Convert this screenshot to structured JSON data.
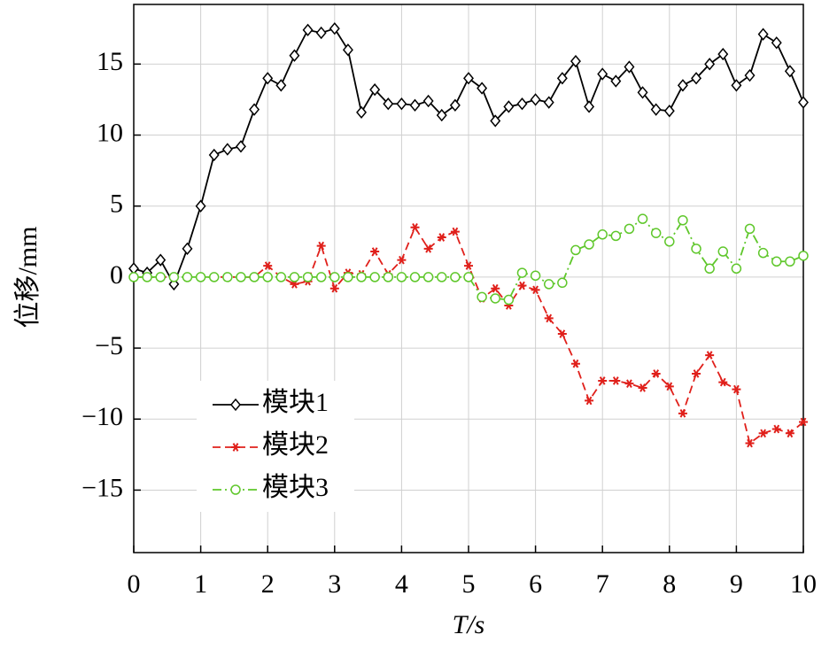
{
  "chart_data": {
    "type": "line",
    "x_label": "T/s",
    "y_label": "位移/mm",
    "xlim": [
      0,
      10
    ],
    "ylim": [
      -19.4,
      19.2
    ],
    "xticks": [
      0,
      1,
      2,
      3,
      4,
      5,
      6,
      7,
      8,
      9,
      10
    ],
    "yticks": [
      {
        "value": -15,
        "label": "−15"
      },
      {
        "value": -10,
        "label": "−10"
      },
      {
        "value": -5,
        "label": "−5"
      },
      0,
      5,
      10,
      15
    ],
    "grid": true,
    "legend": "lower left",
    "x": [
      0,
      0.2,
      0.4,
      0.6,
      0.8,
      1.0,
      1.2,
      1.4,
      1.6,
      1.8,
      2.0,
      2.2,
      2.4,
      2.6,
      2.8,
      3.0,
      3.2,
      3.4,
      3.6,
      3.8,
      4.0,
      4.2,
      4.4,
      4.6,
      4.8,
      5.0,
      5.2,
      5.4,
      5.6,
      5.8,
      6.0,
      6.2,
      6.4,
      6.6,
      6.8,
      7.0,
      7.2,
      7.4,
      7.6,
      7.8,
      8.0,
      8.2,
      8.4,
      8.6,
      8.8,
      9.0,
      9.2,
      9.4,
      9.6,
      9.8,
      10.0
    ],
    "series": [
      {
        "name": "模块1",
        "color": "#000000",
        "marker": "diamond",
        "dash": "solid",
        "values": [
          0.6,
          0.3,
          1.2,
          -0.5,
          2.0,
          5.0,
          8.6,
          9.0,
          9.2,
          11.8,
          14.0,
          13.5,
          15.6,
          17.4,
          17.2,
          17.5,
          16.0,
          11.6,
          13.2,
          12.2,
          12.2,
          12.1,
          12.4,
          11.4,
          12.1,
          14.0,
          13.3,
          11.0,
          12.0,
          12.2,
          12.5,
          12.3,
          14.0,
          15.2,
          12.0,
          14.3,
          13.8,
          14.8,
          13.0,
          11.8,
          11.7,
          13.5,
          14.0,
          15.0,
          15.7,
          13.5,
          14.2,
          17.1,
          16.5,
          14.5,
          12.3
        ]
      },
      {
        "name": "模块2",
        "color": "#e0201b",
        "marker": "asterisk",
        "dash": "dashed",
        "values": [
          0,
          0,
          0,
          0,
          0,
          0,
          0,
          0,
          0,
          0,
          0.8,
          0,
          -0.5,
          -0.3,
          2.2,
          -0.8,
          0.3,
          0.2,
          1.8,
          0.2,
          1.2,
          3.5,
          2.0,
          2.8,
          3.2,
          0.8,
          -1.5,
          -0.8,
          -2.0,
          -0.6,
          -0.9,
          -2.9,
          -4.0,
          -6.1,
          -8.7,
          -7.3,
          -7.3,
          -7.5,
          -7.8,
          -6.8,
          -7.7,
          -9.6,
          -6.8,
          -5.5,
          -7.4,
          -7.9,
          -11.7,
          -11.0,
          -10.7,
          -11.0,
          -10.2
        ]
      },
      {
        "name": "模块3",
        "color": "#5fc72b",
        "marker": "circle",
        "dash": "dashdot",
        "values": [
          0,
          0,
          0,
          0,
          0,
          0,
          0,
          0,
          0,
          0,
          0,
          0,
          0,
          0,
          0,
          0,
          0,
          0,
          0,
          0,
          0,
          0,
          0,
          0,
          0,
          0,
          -1.4,
          -1.5,
          -1.6,
          0.3,
          0.1,
          -0.5,
          -0.4,
          1.9,
          2.3,
          3.0,
          2.9,
          3.4,
          4.1,
          3.1,
          2.5,
          4.0,
          2.0,
          0.6,
          1.8,
          0.6,
          3.4,
          1.7,
          1.1,
          1.1,
          1.5
        ]
      }
    ]
  }
}
